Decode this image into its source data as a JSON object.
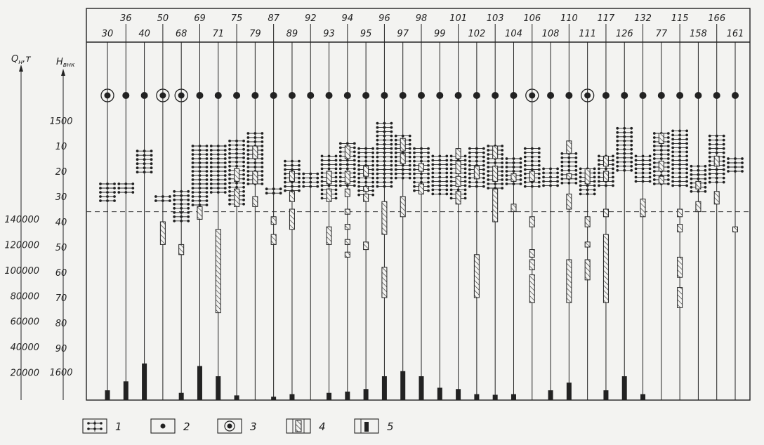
{
  "axes": {
    "q_title": "Q",
    "q_title_sub": "н",
    "q_title_unit": ",т",
    "h_title": "H",
    "h_title_sub": "внк",
    "q_ticks": [
      "140000",
      "120000",
      "100000",
      "80000",
      "60000",
      "40000",
      "20000"
    ],
    "q_tick_values": [
      140000,
      120000,
      100000,
      80000,
      60000,
      40000,
      20000
    ],
    "h_ticks": [
      "1500",
      "10",
      "20",
      "30",
      "40",
      "50",
      "60",
      "70",
      "80",
      "90",
      "1600"
    ],
    "contact_level": 36
  },
  "wells": [
    {
      "id": "30",
      "type": "circle",
      "q": 6000,
      "perf": [
        [
          25,
          33
        ]
      ],
      "hatch": []
    },
    {
      "id": "36",
      "type": "dot",
      "q": 13000,
      "perf": [
        [
          25,
          29
        ]
      ],
      "hatch": []
    },
    {
      "id": "40",
      "type": "dot",
      "q": 27000,
      "perf": [
        [
          12,
          21
        ]
      ],
      "hatch": []
    },
    {
      "id": "50",
      "type": "circle",
      "q": 0,
      "perf": [
        [
          30,
          33
        ]
      ],
      "hatch": [
        [
          40,
          49
        ]
      ]
    },
    {
      "id": "68",
      "type": "circle",
      "q": 4000,
      "perf": [
        [
          28,
          41
        ]
      ],
      "hatch": [
        [
          49,
          53
        ]
      ]
    },
    {
      "id": "69",
      "type": "dot",
      "q": 25000,
      "perf": [
        [
          10,
          34
        ]
      ],
      "hatch": [
        [
          34,
          39
        ]
      ]
    },
    {
      "id": "71",
      "type": "dot",
      "q": 17000,
      "perf": [
        [
          10,
          29
        ]
      ],
      "hatch": [
        [
          43,
          76
        ]
      ]
    },
    {
      "id": "75",
      "type": "dot",
      "q": 2000,
      "perf": [
        [
          8,
          34
        ]
      ],
      "hatch": [
        [
          19,
          24
        ],
        [
          27,
          34
        ]
      ]
    },
    {
      "id": "79",
      "type": "dot",
      "q": 0,
      "perf": [
        [
          5,
          25
        ]
      ],
      "hatch": [
        [
          10,
          15
        ],
        [
          20,
          25
        ],
        [
          30,
          34
        ]
      ]
    },
    {
      "id": "87",
      "type": "dot",
      "q": 1000,
      "perf": [
        [
          27,
          30
        ]
      ],
      "hatch": [
        [
          38,
          41
        ],
        [
          45,
          49
        ]
      ]
    },
    {
      "id": "89",
      "type": "dot",
      "q": 3000,
      "perf": [
        [
          16,
          28
        ]
      ],
      "hatch": [
        [
          20,
          24
        ],
        [
          28,
          32
        ],
        [
          35,
          43
        ]
      ]
    },
    {
      "id": "92",
      "type": "dot",
      "q": 0,
      "perf": [
        [
          21,
          27
        ]
      ],
      "hatch": []
    },
    {
      "id": "93",
      "type": "dot",
      "q": 4000,
      "perf": [
        [
          14,
          31
        ]
      ],
      "hatch": [
        [
          20,
          25
        ],
        [
          27,
          32
        ],
        [
          42,
          49
        ]
      ]
    },
    {
      "id": "94",
      "type": "dot",
      "q": 5000,
      "perf": [
        [
          9,
          26
        ]
      ],
      "hatch": [
        [
          10,
          15
        ],
        [
          20,
          25
        ],
        [
          27,
          30
        ],
        [
          35,
          37
        ],
        [
          41,
          43
        ],
        [
          47,
          49
        ],
        [
          52,
          54
        ]
      ]
    },
    {
      "id": "95",
      "type": "dot",
      "q": 7000,
      "perf": [
        [
          11,
          30
        ]
      ],
      "hatch": [
        [
          18,
          22
        ],
        [
          26,
          28
        ],
        [
          29,
          32
        ],
        [
          48,
          51
        ]
      ]
    },
    {
      "id": "96",
      "type": "dot",
      "q": 17000,
      "perf": [
        [
          1,
          26
        ]
      ],
      "hatch": [
        [
          32,
          45
        ],
        [
          58,
          70
        ]
      ]
    },
    {
      "id": "97",
      "type": "dot",
      "q": 21000,
      "perf": [
        [
          6,
          23
        ]
      ],
      "hatch": [
        [
          7,
          12
        ],
        [
          13,
          17
        ],
        [
          30,
          38
        ]
      ]
    },
    {
      "id": "98",
      "type": "dot",
      "q": 17000,
      "perf": [
        [
          11,
          29
        ]
      ],
      "hatch": [
        [
          17,
          20
        ],
        [
          25,
          29
        ]
      ]
    },
    {
      "id": "99",
      "type": "dot",
      "q": 8000,
      "perf": [
        [
          14,
          30
        ]
      ],
      "hatch": []
    },
    {
      "id": "101",
      "type": "dot",
      "q": 7000,
      "perf": [
        [
          14,
          31
        ]
      ],
      "hatch": [
        [
          11,
          15
        ],
        [
          16,
          21
        ],
        [
          22,
          26
        ],
        [
          28,
          33
        ]
      ]
    },
    {
      "id": "102",
      "type": "dot",
      "q": 3000,
      "perf": [
        [
          11,
          26
        ]
      ],
      "hatch": [
        [
          18,
          23
        ],
        [
          53,
          70
        ]
      ]
    },
    {
      "id": "103",
      "type": "dot",
      "q": 2500,
      "perf": [
        [
          10,
          27
        ]
      ],
      "hatch": [
        [
          10,
          15
        ],
        [
          18,
          24
        ],
        [
          27,
          40
        ]
      ]
    },
    {
      "id": "104",
      "type": "dot",
      "q": 3000,
      "perf": [
        [
          15,
          26
        ]
      ],
      "hatch": [
        [
          21,
          24
        ],
        [
          33,
          36
        ]
      ]
    },
    {
      "id": "106",
      "type": "circle",
      "q": 0,
      "perf": [
        [
          11,
          27
        ]
      ],
      "hatch": [
        [
          20,
          24
        ],
        [
          38,
          42
        ],
        [
          51,
          54
        ],
        [
          55,
          59
        ],
        [
          61,
          72
        ]
      ]
    },
    {
      "id": "108",
      "type": "dot",
      "q": 6000,
      "perf": [
        [
          19,
          27
        ]
      ],
      "hatch": []
    },
    {
      "id": "110",
      "type": "dot",
      "q": 12000,
      "perf": [
        [
          13,
          26
        ]
      ],
      "hatch": [
        [
          8,
          13
        ],
        [
          21,
          23
        ],
        [
          29,
          35
        ],
        [
          55,
          72
        ]
      ]
    },
    {
      "id": "111",
      "type": "circle",
      "q": 0,
      "perf": [
        [
          19,
          30
        ]
      ],
      "hatch": [
        [
          19,
          25
        ],
        [
          38,
          42
        ],
        [
          48,
          50
        ],
        [
          55,
          63
        ]
      ]
    },
    {
      "id": "117",
      "type": "dot",
      "q": 6000,
      "perf": [
        [
          14,
          27
        ]
      ],
      "hatch": [
        [
          14,
          18
        ],
        [
          20,
          24
        ],
        [
          35,
          38
        ],
        [
          45,
          72
        ]
      ]
    },
    {
      "id": "126",
      "type": "dot",
      "q": 17000,
      "perf": [
        [
          3,
          21
        ]
      ],
      "hatch": []
    },
    {
      "id": "132",
      "type": "dot",
      "q": 3000,
      "perf": [
        [
          14,
          25
        ]
      ],
      "hatch": [
        [
          31,
          38
        ]
      ]
    },
    {
      "id": "77",
      "type": "dot",
      "q": 0,
      "perf": [
        [
          5,
          25
        ]
      ],
      "hatch": [
        [
          5,
          9
        ],
        [
          16,
          20
        ],
        [
          22,
          25
        ]
      ]
    },
    {
      "id": "115",
      "type": "dot",
      "q": 0,
      "perf": [
        [
          4,
          26
        ]
      ],
      "hatch": [
        [
          35,
          38
        ],
        [
          41,
          44
        ],
        [
          54,
          62
        ],
        [
          66,
          74
        ]
      ]
    },
    {
      "id": "158",
      "type": "dot",
      "q": 0,
      "perf": [
        [
          18,
          28
        ]
      ],
      "hatch": [
        [
          24,
          27
        ],
        [
          32,
          36
        ]
      ]
    },
    {
      "id": "166",
      "type": "dot",
      "q": 0,
      "perf": [
        [
          6,
          25
        ]
      ],
      "hatch": [
        [
          14,
          18
        ],
        [
          28,
          33
        ]
      ]
    },
    {
      "id": "161",
      "type": "dot",
      "q": 0,
      "perf": [
        [
          15,
          21
        ]
      ],
      "hatch": [
        [
          42,
          44
        ]
      ]
    }
  ],
  "legend": [
    {
      "num": "1",
      "kind": "perforation"
    },
    {
      "num": "2",
      "kind": "producing"
    },
    {
      "num": "3",
      "kind": "injection"
    },
    {
      "num": "4",
      "kind": "hatched"
    },
    {
      "num": "5",
      "kind": "production-bar"
    }
  ],
  "colors": {
    "ink": "#222222",
    "paper": "#f3f3f1"
  }
}
